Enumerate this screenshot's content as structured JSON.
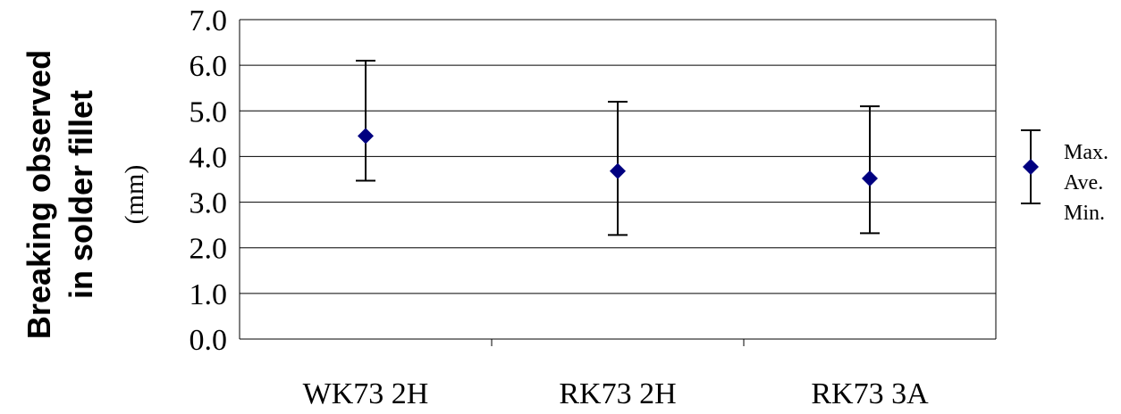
{
  "chart_data": {
    "type": "scatter",
    "ylabel": {
      "line1": "Breaking observed",
      "line2": "in solder fillet",
      "unit": "(mm)"
    },
    "ylim": [
      0,
      7
    ],
    "yticks": [
      "0.0",
      "1.0",
      "2.0",
      "3.0",
      "4.0",
      "5.0",
      "6.0",
      "7.0"
    ],
    "grid": true,
    "legend_position": "right",
    "categories": [
      "WK73 2H",
      "RK73 2H",
      "RK73 3A"
    ],
    "series": [
      {
        "name": "Max.",
        "values": [
          6.1,
          5.2,
          5.1
        ]
      },
      {
        "name": "Ave.",
        "values": [
          4.45,
          3.68,
          3.52
        ]
      },
      {
        "name": "Min.",
        "values": [
          3.47,
          2.28,
          2.32
        ]
      }
    ],
    "colors": {
      "marker": "#000080",
      "errorbar": "#000000",
      "grid": "#000000"
    }
  }
}
